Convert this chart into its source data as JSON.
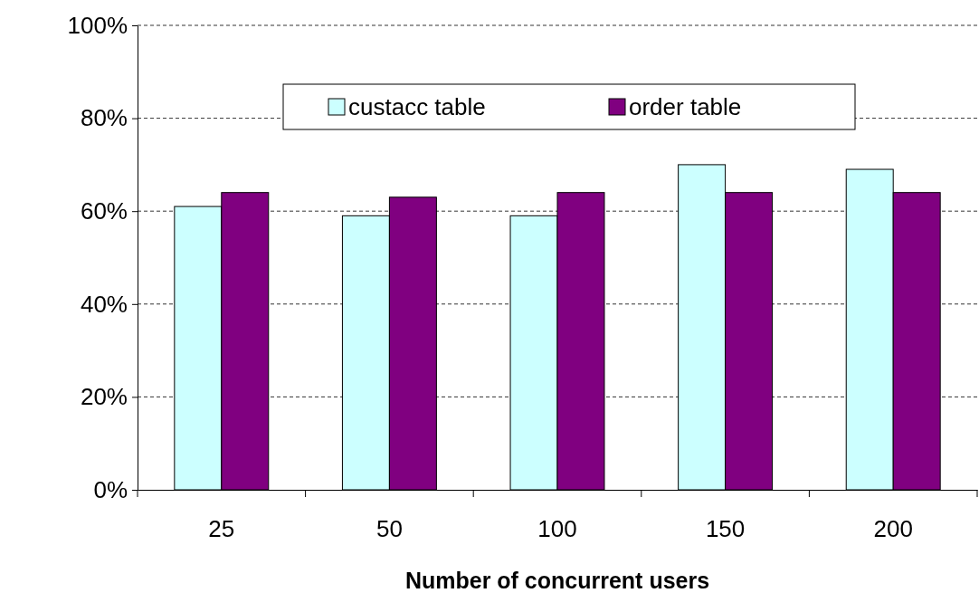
{
  "chart_data": {
    "type": "bar",
    "xlabel": "Number of concurrent users",
    "categories": [
      "25",
      "50",
      "100",
      "150",
      "200"
    ],
    "series": [
      {
        "name": "custacc table",
        "color": "#ccffff",
        "values": [
          61,
          59,
          59,
          70,
          69
        ]
      },
      {
        "name": "order table",
        "color": "#800080",
        "values": [
          64,
          63,
          64,
          64,
          64
        ]
      }
    ],
    "ylim": [
      0,
      100
    ],
    "yticks": [
      {
        "value": 0,
        "label": "0%"
      },
      {
        "value": 20,
        "label": "20%"
      },
      {
        "value": 40,
        "label": "40%"
      },
      {
        "value": 60,
        "label": "60%"
      },
      {
        "value": 80,
        "label": "80%"
      },
      {
        "value": 100,
        "label": "100%"
      }
    ],
    "grid": "y",
    "legend": "top"
  }
}
